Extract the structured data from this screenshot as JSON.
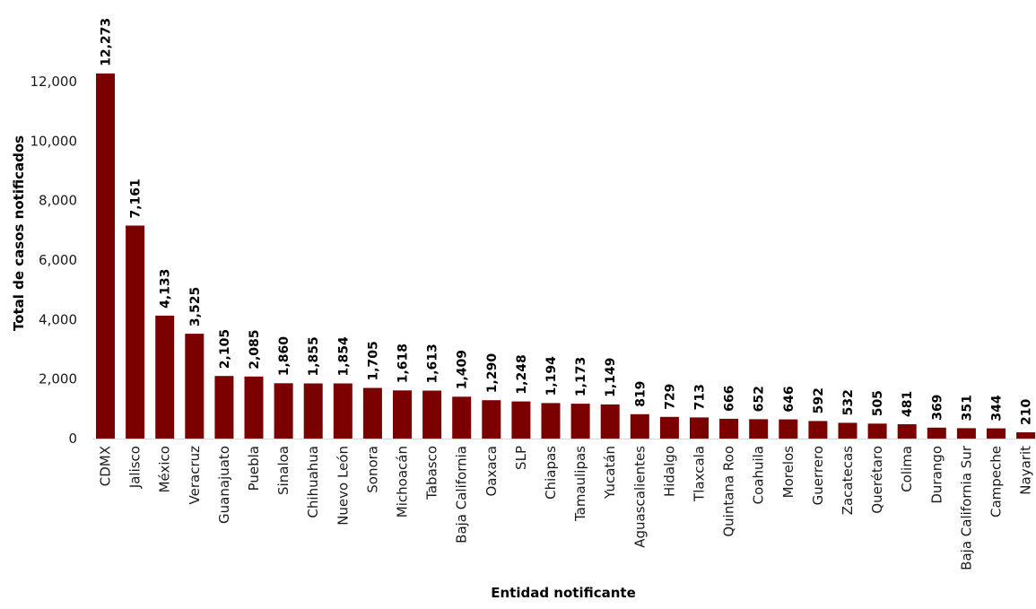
{
  "chart_data": {
    "type": "bar",
    "xlabel": "Entidad notificante",
    "ylabel": "Total de casos notificados",
    "ylim": [
      0,
      12000
    ],
    "yticks": [
      0,
      2000,
      4000,
      6000,
      8000,
      10000,
      12000
    ],
    "ytick_labels": [
      "0",
      "2,000",
      "4,000",
      "6,000",
      "8,000",
      "10,000",
      "12,000"
    ],
    "grid": false,
    "bar_color": "#7b0000",
    "categories": [
      "CDMX",
      "Jalisco",
      "México",
      "Veracruz",
      "Guanajuato",
      "Puebla",
      "Sinaloa",
      "Chihuahua",
      "Nuevo León",
      "Sonora",
      "Michoacán",
      "Tabasco",
      "Baja California",
      "Oaxaca",
      "SLP",
      "Chiapas",
      "Tamaulipas",
      "Yucatán",
      "Aguascalientes",
      "Hidalgo",
      "Tlaxcala",
      "Quintana Roo",
      "Coahuila",
      "Morelos",
      "Guerrero",
      "Zacatecas",
      "Querétaro",
      "Colima",
      "Durango",
      "Baja California Sur",
      "Campeche",
      "Nayarit"
    ],
    "values": [
      12273,
      7161,
      4133,
      3525,
      2105,
      2085,
      1860,
      1855,
      1854,
      1705,
      1618,
      1613,
      1409,
      1290,
      1248,
      1194,
      1173,
      1149,
      819,
      729,
      713,
      666,
      652,
      646,
      592,
      532,
      505,
      481,
      369,
      351,
      344,
      210
    ],
    "value_labels": [
      "12,273",
      "7,161",
      "4,133",
      "3,525",
      "2,105",
      "2,085",
      "1,860",
      "1,855",
      "1,854",
      "1,705",
      "1,618",
      "1,613",
      "1,409",
      "1,290",
      "1,248",
      "1,194",
      "1,173",
      "1,149",
      "819",
      "729",
      "713",
      "666",
      "652",
      "646",
      "592",
      "532",
      "505",
      "481",
      "369",
      "351",
      "344",
      "210"
    ]
  }
}
